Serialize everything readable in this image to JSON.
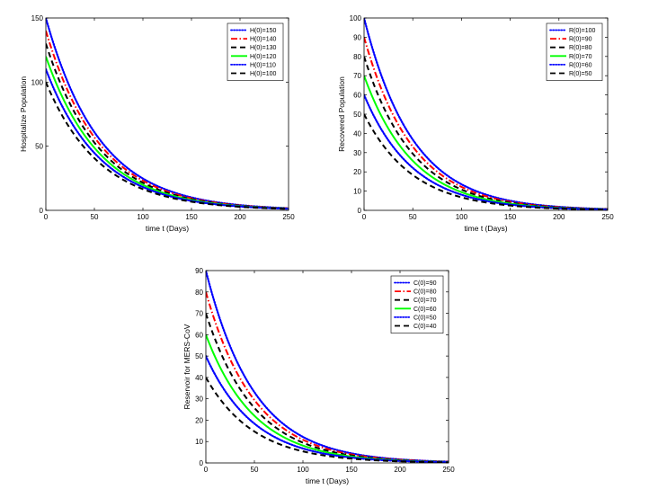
{
  "chart_data": [
    {
      "type": "line",
      "title": "",
      "xlabel": "time t (Days)",
      "ylabel": "Hospitalize Population",
      "xlim": [
        0,
        250
      ],
      "ylim": [
        0,
        150
      ],
      "xticks": [
        0,
        50,
        100,
        150,
        200,
        250
      ],
      "yticks": [
        0,
        50,
        100,
        150
      ],
      "decay_rate": 0.018,
      "legend_position": "top-right",
      "series": [
        {
          "name": "H(0)=150",
          "initial": 150,
          "color": "#0000ff",
          "style": "dotted"
        },
        {
          "name": "H(0)=140",
          "initial": 140,
          "color": "#ff0000",
          "style": "dashdot"
        },
        {
          "name": "H(0)=130",
          "initial": 130,
          "color": "#000000",
          "style": "dashed"
        },
        {
          "name": "H(0)=120",
          "initial": 120,
          "color": "#00ff00",
          "style": "solid"
        },
        {
          "name": "H(0)=110",
          "initial": 110,
          "color": "#0000ff",
          "style": "dotted"
        },
        {
          "name": "H(0)=100",
          "initial": 100,
          "color": "#000000",
          "style": "dashed"
        }
      ]
    },
    {
      "type": "line",
      "title": "",
      "xlabel": "time t (Days)",
      "ylabel": "Recovered Population",
      "xlim": [
        0,
        250
      ],
      "ylim": [
        0,
        100
      ],
      "xticks": [
        0,
        50,
        100,
        150,
        200,
        250
      ],
      "yticks": [
        0,
        10,
        20,
        30,
        40,
        50,
        60,
        70,
        80,
        90,
        100
      ],
      "decay_rate": 0.02,
      "legend_position": "top-right",
      "series": [
        {
          "name": "R(0)=100",
          "initial": 100,
          "color": "#0000ff",
          "style": "dotted"
        },
        {
          "name": "R(0)=90",
          "initial": 90,
          "color": "#ff0000",
          "style": "dashdot"
        },
        {
          "name": "R(0)=80",
          "initial": 80,
          "color": "#000000",
          "style": "dashed"
        },
        {
          "name": "R(0)=70",
          "initial": 70,
          "color": "#00ff00",
          "style": "solid"
        },
        {
          "name": "R(0)=60",
          "initial": 60,
          "color": "#0000ff",
          "style": "dotted"
        },
        {
          "name": "R(0)=50",
          "initial": 50,
          "color": "#000000",
          "style": "dashed"
        }
      ]
    },
    {
      "type": "line",
      "title": "",
      "xlabel": "time t (Days)",
      "ylabel": "Reservoir for MERS-CoV",
      "xlim": [
        0,
        250
      ],
      "ylim": [
        0,
        90
      ],
      "xticks": [
        0,
        50,
        100,
        150,
        200,
        250
      ],
      "yticks": [
        0,
        10,
        20,
        30,
        40,
        50,
        60,
        70,
        80,
        90
      ],
      "decay_rate": 0.02,
      "legend_position": "top-right",
      "series": [
        {
          "name": "C(0)=90",
          "initial": 90,
          "color": "#0000ff",
          "style": "dotted"
        },
        {
          "name": "C(0)=80",
          "initial": 80,
          "color": "#ff0000",
          "style": "dashdot"
        },
        {
          "name": "C(0)=70",
          "initial": 70,
          "color": "#000000",
          "style": "dashed"
        },
        {
          "name": "C(0)=60",
          "initial": 60,
          "color": "#00ff00",
          "style": "solid"
        },
        {
          "name": "C(0)=50",
          "initial": 50,
          "color": "#0000ff",
          "style": "dotted"
        },
        {
          "name": "C(0)=40",
          "initial": 40,
          "color": "#000000",
          "style": "dashed"
        }
      ]
    }
  ]
}
